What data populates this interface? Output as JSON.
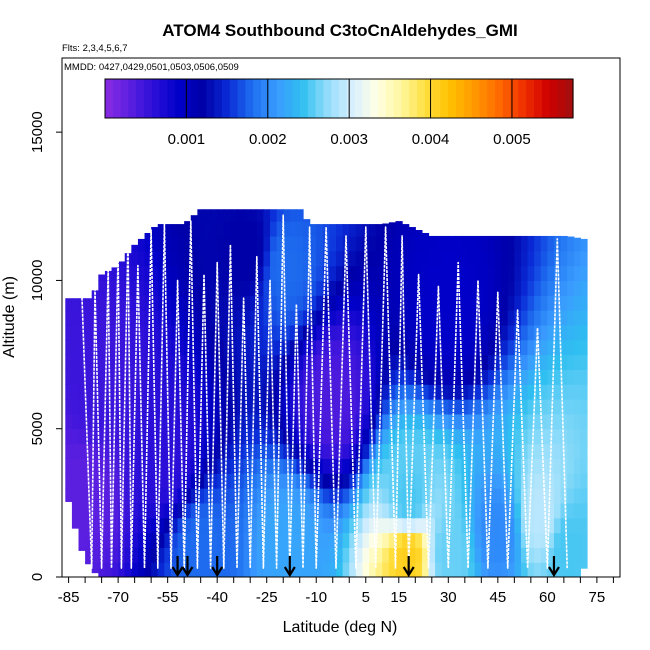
{
  "chart_data": {
    "type": "heatmap",
    "title": "ATOM4 Southbound C3toCnAldehydes_GMI",
    "flights_note": "Flts: 2,3,4,5,6,7",
    "dates_note": "MMDD: 0427,0429,0501,0503,0506,0509",
    "xlabel": "Latitude (deg N)",
    "ylabel": "Altitude (m)",
    "xlim": [
      -87,
      82
    ],
    "ylim": [
      0,
      17500
    ],
    "x_ticks": [
      -85,
      -70,
      -55,
      -40,
      -25,
      -10,
      5,
      15,
      30,
      45,
      60,
      75
    ],
    "x_minor_step": 5,
    "y_ticks": [
      0,
      5000,
      10000,
      15000
    ],
    "colorbar": {
      "range": [
        0,
        0.00575
      ],
      "ticks": [
        0.001,
        0.002,
        0.003,
        0.004,
        0.005
      ],
      "tick_labels": [
        "0.001",
        "0.002",
        "0.003",
        "0.004",
        "0.005"
      ],
      "colors": [
        "#8A2BE2",
        "#5B1FE0",
        "#2A0FD8",
        "#0000C8",
        "#0000A8",
        "#0A2CD8",
        "#1F6FF0",
        "#3A9BFF",
        "#2FBFF0",
        "#8FDCFA",
        "#D7EFFF",
        "#FFFFE6",
        "#FFF7A0",
        "#FFE040",
        "#FFC000",
        "#FF9800",
        "#FF6A00",
        "#F03000",
        "#D00000",
        "#A01010"
      ]
    },
    "data_extent": {
      "lat_range": [
        -86,
        71
      ],
      "top_altitude_by_lat": [
        [
          -86,
          9400
        ],
        [
          -78,
          9400
        ],
        [
          -75,
          10200
        ],
        [
          -70,
          10500
        ],
        [
          -65,
          11200
        ],
        [
          -58,
          11900
        ],
        [
          -50,
          11900
        ],
        [
          -45,
          12400
        ],
        [
          -15,
          12400
        ],
        [
          -12,
          11900
        ],
        [
          10,
          11900
        ],
        [
          15,
          12000
        ],
        [
          25,
          11500
        ],
        [
          45,
          11500
        ],
        [
          66,
          11500
        ],
        [
          71,
          11400
        ]
      ],
      "bottom_altitude_by_lat": [
        [
          -86,
          3000
        ],
        [
          -82,
          1200
        ],
        [
          -80,
          600
        ],
        [
          -76,
          0
        ],
        [
          70,
          0
        ],
        [
          71,
          300
        ]
      ]
    },
    "concentration_field_samples": [
      {
        "lat": -80,
        "alt": 3000,
        "value": 0.0003
      },
      {
        "lat": -75,
        "alt": 6000,
        "value": 0.0005
      },
      {
        "lat": -55,
        "alt": 4000,
        "value": 0.0006
      },
      {
        "lat": -45,
        "alt": 1000,
        "value": 0.0018
      },
      {
        "lat": -30,
        "alt": 11000,
        "value": 0.0012
      },
      {
        "lat": -20,
        "alt": 10500,
        "value": 0.0018
      },
      {
        "lat": -18,
        "alt": 1000,
        "value": 0.0022
      },
      {
        "lat": -5,
        "alt": 6000,
        "value": 0.0004
      },
      {
        "lat": 18,
        "alt": 800,
        "value": 0.0041
      },
      {
        "lat": 18,
        "alt": 2500,
        "value": 0.0025
      },
      {
        "lat": 30,
        "alt": 800,
        "value": 0.0026
      },
      {
        "lat": 45,
        "alt": 1500,
        "value": 0.002
      },
      {
        "lat": 58,
        "alt": 2000,
        "value": 0.0029
      },
      {
        "lat": 66,
        "alt": 1000,
        "value": 0.0025
      },
      {
        "lat": 30,
        "alt": 9000,
        "value": 0.0009
      }
    ],
    "flight_track_lat": [
      -83,
      -81,
      -78,
      -77,
      -75,
      -73,
      -72,
      -70,
      -69,
      -67,
      -66,
      -64,
      -62,
      -60,
      -58,
      -56,
      -54,
      -52,
      -50,
      -48,
      -46,
      -44,
      -42,
      -40,
      -38,
      -36,
      -34,
      -32,
      -30,
      -28,
      -26,
      -24,
      -22,
      -20,
      -18,
      -16,
      -14,
      -12,
      -10,
      -7,
      -4,
      -1,
      2,
      5,
      8,
      11,
      14,
      16,
      18,
      21,
      24,
      27,
      30,
      33,
      36,
      39,
      42,
      45,
      48,
      51,
      54,
      57,
      60,
      63,
      66,
      68,
      70
    ],
    "flight_track_alt": [
      9600,
      9600,
      300,
      9700,
      300,
      10400,
      300,
      10900,
      300,
      11400,
      300,
      10500,
      300,
      11700,
      300,
      11900,
      300,
      10000,
      300,
      12000,
      300,
      10200,
      300,
      10600,
      300,
      11200,
      300,
      9400,
      300,
      10800,
      300,
      10000,
      300,
      12200,
      300,
      9200,
      300,
      11800,
      300,
      11800,
      300,
      11500,
      300,
      11800,
      300,
      11800,
      300,
      11500,
      400,
      10200,
      300,
      9800,
      300,
      10600,
      300,
      10000,
      300,
      9600,
      300,
      9000,
      300,
      8400,
      300,
      11400,
      300
    ],
    "ocean_transect_markers_lat": [
      -52,
      -49,
      -40,
      -18,
      18,
      62
    ]
  }
}
